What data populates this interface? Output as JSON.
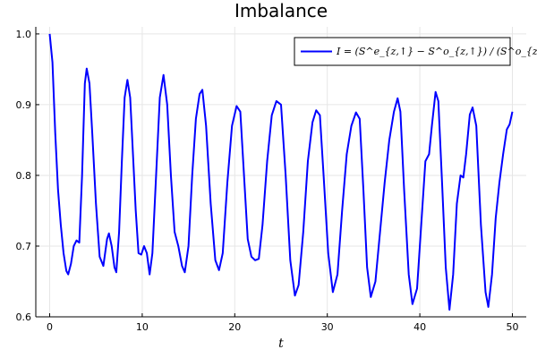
{
  "chart_data": {
    "type": "line",
    "title": "Imbalance",
    "xlabel": "t",
    "ylabel": "",
    "xlim": [
      -1.5,
      51.5
    ],
    "ylim": [
      0.6,
      1.01
    ],
    "xticks": [
      0,
      10,
      20,
      30,
      40,
      50
    ],
    "yticks": [
      0.6,
      0.7,
      0.8,
      0.9,
      1.0
    ],
    "xtick_labels": [
      "0",
      "10",
      "20",
      "30",
      "40",
      "50"
    ],
    "ytick_labels": [
      "0.6",
      "0.7",
      "0.8",
      "0.9",
      "1.0"
    ],
    "grid": true,
    "legend_position": "top-right",
    "series": [
      {
        "name": "I = (S^e_{z,↑} − S^o_{z,↑}) / (S^o_{z,↑} + S^e_{z,↑})",
        "color": "#0000ff",
        "points": [
          [
            0.0,
            1.0
          ],
          [
            0.3,
            0.96
          ],
          [
            0.6,
            0.86
          ],
          [
            0.9,
            0.78
          ],
          [
            1.2,
            0.73
          ],
          [
            1.5,
            0.69
          ],
          [
            1.8,
            0.665
          ],
          [
            2.0,
            0.66
          ],
          [
            2.3,
            0.675
          ],
          [
            2.6,
            0.7
          ],
          [
            2.9,
            0.708
          ],
          [
            3.2,
            0.705
          ],
          [
            3.5,
            0.8
          ],
          [
            3.8,
            0.93
          ],
          [
            4.0,
            0.951
          ],
          [
            4.3,
            0.93
          ],
          [
            4.6,
            0.86
          ],
          [
            5.0,
            0.76
          ],
          [
            5.4,
            0.685
          ],
          [
            5.8,
            0.672
          ],
          [
            6.2,
            0.71
          ],
          [
            6.4,
            0.718
          ],
          [
            6.7,
            0.7
          ],
          [
            7.0,
            0.67
          ],
          [
            7.2,
            0.663
          ],
          [
            7.5,
            0.72
          ],
          [
            7.8,
            0.82
          ],
          [
            8.1,
            0.91
          ],
          [
            8.4,
            0.935
          ],
          [
            8.7,
            0.91
          ],
          [
            9.0,
            0.83
          ],
          [
            9.3,
            0.75
          ],
          [
            9.6,
            0.69
          ],
          [
            9.9,
            0.688
          ],
          [
            10.2,
            0.7
          ],
          [
            10.5,
            0.69
          ],
          [
            10.8,
            0.66
          ],
          [
            11.1,
            0.69
          ],
          [
            11.5,
            0.8
          ],
          [
            11.9,
            0.91
          ],
          [
            12.3,
            0.942
          ],
          [
            12.7,
            0.9
          ],
          [
            13.1,
            0.8
          ],
          [
            13.5,
            0.72
          ],
          [
            13.9,
            0.7
          ],
          [
            14.3,
            0.672
          ],
          [
            14.6,
            0.663
          ],
          [
            15.0,
            0.7
          ],
          [
            15.4,
            0.8
          ],
          [
            15.8,
            0.88
          ],
          [
            16.2,
            0.915
          ],
          [
            16.5,
            0.921
          ],
          [
            16.9,
            0.87
          ],
          [
            17.4,
            0.76
          ],
          [
            17.9,
            0.68
          ],
          [
            18.3,
            0.666
          ],
          [
            18.7,
            0.69
          ],
          [
            19.2,
            0.79
          ],
          [
            19.7,
            0.87
          ],
          [
            20.2,
            0.898
          ],
          [
            20.6,
            0.89
          ],
          [
            21.0,
            0.8
          ],
          [
            21.4,
            0.71
          ],
          [
            21.8,
            0.685
          ],
          [
            22.2,
            0.68
          ],
          [
            22.6,
            0.682
          ],
          [
            23.0,
            0.73
          ],
          [
            23.5,
            0.82
          ],
          [
            24.0,
            0.885
          ],
          [
            24.5,
            0.905
          ],
          [
            25.0,
            0.9
          ],
          [
            25.5,
            0.8
          ],
          [
            26.0,
            0.68
          ],
          [
            26.5,
            0.63
          ],
          [
            26.9,
            0.645
          ],
          [
            27.4,
            0.72
          ],
          [
            27.9,
            0.82
          ],
          [
            28.4,
            0.875
          ],
          [
            28.8,
            0.892
          ],
          [
            29.2,
            0.885
          ],
          [
            29.6,
            0.8
          ],
          [
            30.1,
            0.69
          ],
          [
            30.6,
            0.635
          ],
          [
            31.1,
            0.66
          ],
          [
            31.6,
            0.75
          ],
          [
            32.1,
            0.83
          ],
          [
            32.6,
            0.87
          ],
          [
            33.1,
            0.889
          ],
          [
            33.5,
            0.88
          ],
          [
            33.9,
            0.78
          ],
          [
            34.3,
            0.67
          ],
          [
            34.7,
            0.628
          ],
          [
            35.2,
            0.65
          ],
          [
            35.7,
            0.72
          ],
          [
            36.2,
            0.79
          ],
          [
            36.7,
            0.85
          ],
          [
            37.2,
            0.89
          ],
          [
            37.6,
            0.909
          ],
          [
            37.9,
            0.89
          ],
          [
            38.3,
            0.78
          ],
          [
            38.8,
            0.66
          ],
          [
            39.2,
            0.618
          ],
          [
            39.7,
            0.64
          ],
          [
            40.2,
            0.74
          ],
          [
            40.6,
            0.82
          ],
          [
            41.0,
            0.83
          ],
          [
            41.3,
            0.87
          ],
          [
            41.7,
            0.918
          ],
          [
            42.0,
            0.905
          ],
          [
            42.4,
            0.79
          ],
          [
            42.8,
            0.67
          ],
          [
            43.2,
            0.61
          ],
          [
            43.6,
            0.66
          ],
          [
            44.0,
            0.76
          ],
          [
            44.4,
            0.8
          ],
          [
            44.7,
            0.797
          ],
          [
            45.0,
            0.83
          ],
          [
            45.4,
            0.886
          ],
          [
            45.7,
            0.896
          ],
          [
            46.1,
            0.87
          ],
          [
            46.6,
            0.73
          ],
          [
            47.1,
            0.635
          ],
          [
            47.4,
            0.614
          ],
          [
            47.8,
            0.66
          ],
          [
            48.2,
            0.74
          ],
          [
            48.6,
            0.79
          ],
          [
            49.0,
            0.83
          ],
          [
            49.4,
            0.865
          ],
          [
            49.7,
            0.872
          ],
          [
            50.0,
            0.89
          ]
        ]
      }
    ]
  }
}
